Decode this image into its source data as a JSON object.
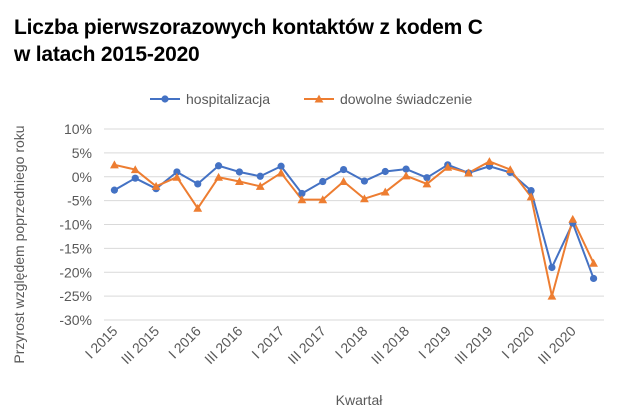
{
  "chart_data": {
    "type": "line",
    "title_line1": "Liczba pierwszorazowych kontaktów z kodem C",
    "title_line2": "w latach 2015-2020",
    "xlabel": "Kwartał",
    "ylabel": "Przyrost względem poprzedniego roku",
    "ylim": [
      -30,
      10
    ],
    "yticks": [
      10,
      5,
      0,
      -5,
      -10,
      -15,
      -20,
      -25,
      -30
    ],
    "ytick_labels": [
      "10%",
      "5%",
      "0%",
      "-5%",
      "-10%",
      "-15%",
      "-20%",
      "-25%",
      "-30%"
    ],
    "grid": true,
    "legend_position": "top",
    "categories": [
      "I 2015",
      "II 2015",
      "III 2015",
      "IV 2015",
      "I 2016",
      "II 2016",
      "III 2016",
      "IV 2016",
      "I 2017",
      "II 2017",
      "III 2017",
      "IV 2017",
      "I 2018",
      "II 2018",
      "III 2018",
      "IV 2018",
      "I 2019",
      "II 2019",
      "III 2019",
      "IV 2019",
      "I 2020",
      "II 2020",
      "III 2020",
      "IV 2020"
    ],
    "xtick_labels": [
      "I 2015",
      "",
      "III 2015",
      "",
      "I 2016",
      "",
      "III 2016",
      "",
      "I 2017",
      "",
      "III 2017",
      "",
      "I 2018",
      "",
      "III 2018",
      "",
      "I 2019",
      "",
      "III 2019",
      "",
      "I 2020",
      "",
      "III 2020",
      ""
    ],
    "series": [
      {
        "name": "hospitalizacja",
        "color": "#4472C4",
        "marker": "circle",
        "values": [
          -2.8,
          -0.3,
          -2.5,
          1.0,
          -1.5,
          2.3,
          1.0,
          0.1,
          2.2,
          -3.5,
          -1.0,
          1.5,
          -0.9,
          1.1,
          1.6,
          -0.2,
          2.5,
          0.8,
          2.2,
          0.9,
          -2.9,
          -19.0,
          -9.7,
          -21.3
        ]
      },
      {
        "name": "dowolne świadczenie",
        "color": "#ED7D31",
        "marker": "triangle",
        "values": [
          2.5,
          1.5,
          -2.0,
          -0.1,
          -6.6,
          -0.1,
          -1.0,
          -2.0,
          0.8,
          -4.8,
          -4.8,
          -1.0,
          -4.6,
          -3.2,
          0.2,
          -1.5,
          2.0,
          0.8,
          3.2,
          1.5,
          -4.2,
          -25.0,
          -8.9,
          -18.1
        ]
      }
    ]
  }
}
